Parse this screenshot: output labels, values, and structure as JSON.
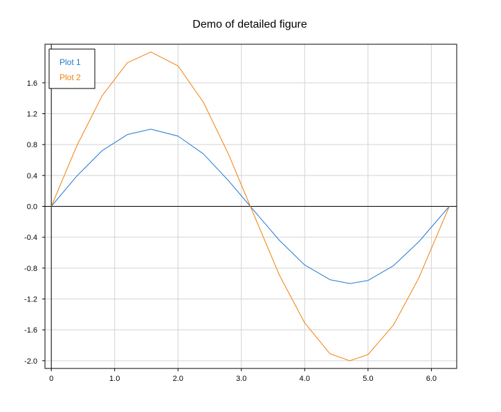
{
  "chart_data": {
    "type": "line",
    "title": "Demo of detailed figure",
    "xlabel": "",
    "ylabel": "",
    "xlim": [
      -0.1,
      6.4
    ],
    "ylim": [
      -2.1,
      2.1
    ],
    "xticks": [
      0,
      1,
      2,
      3,
      4,
      5,
      6
    ],
    "xtick_labels": [
      "0",
      "1.0",
      "2.0",
      "3.0",
      "4.0",
      "5.0",
      "6.0"
    ],
    "yticks": [
      -2,
      -1.6,
      -1.2,
      -0.8,
      -0.4,
      0,
      0.4,
      0.8,
      1.2,
      1.6
    ],
    "ytick_labels": [
      "-2.0",
      "-1.6",
      "-1.2",
      "-0.8",
      "-0.4",
      "0.0",
      "0.4",
      "0.8",
      "1.2",
      "1.6"
    ],
    "grid": true,
    "zero_line": true,
    "legend": "top-left",
    "x": [
      0,
      0.4,
      0.8,
      1.2,
      1.571,
      2.0,
      2.4,
      2.8,
      3.142,
      3.6,
      4.0,
      4.4,
      4.712,
      5.0,
      5.4,
      5.8,
      6.283
    ],
    "series": [
      {
        "name": "Plot 1",
        "color": "#1f77d0",
        "values": [
          0,
          0.39,
          0.72,
          0.93,
          1.0,
          0.91,
          0.68,
          0.33,
          0,
          -0.44,
          -0.76,
          -0.95,
          -1.0,
          -0.96,
          -0.77,
          -0.46,
          0
        ]
      },
      {
        "name": "Plot 2",
        "color": "#f07f09",
        "values": [
          0,
          0.78,
          1.43,
          1.86,
          2.0,
          1.82,
          1.35,
          0.67,
          0,
          -0.89,
          -1.51,
          -1.91,
          -2.0,
          -1.92,
          -1.54,
          -0.93,
          0
        ]
      }
    ]
  }
}
